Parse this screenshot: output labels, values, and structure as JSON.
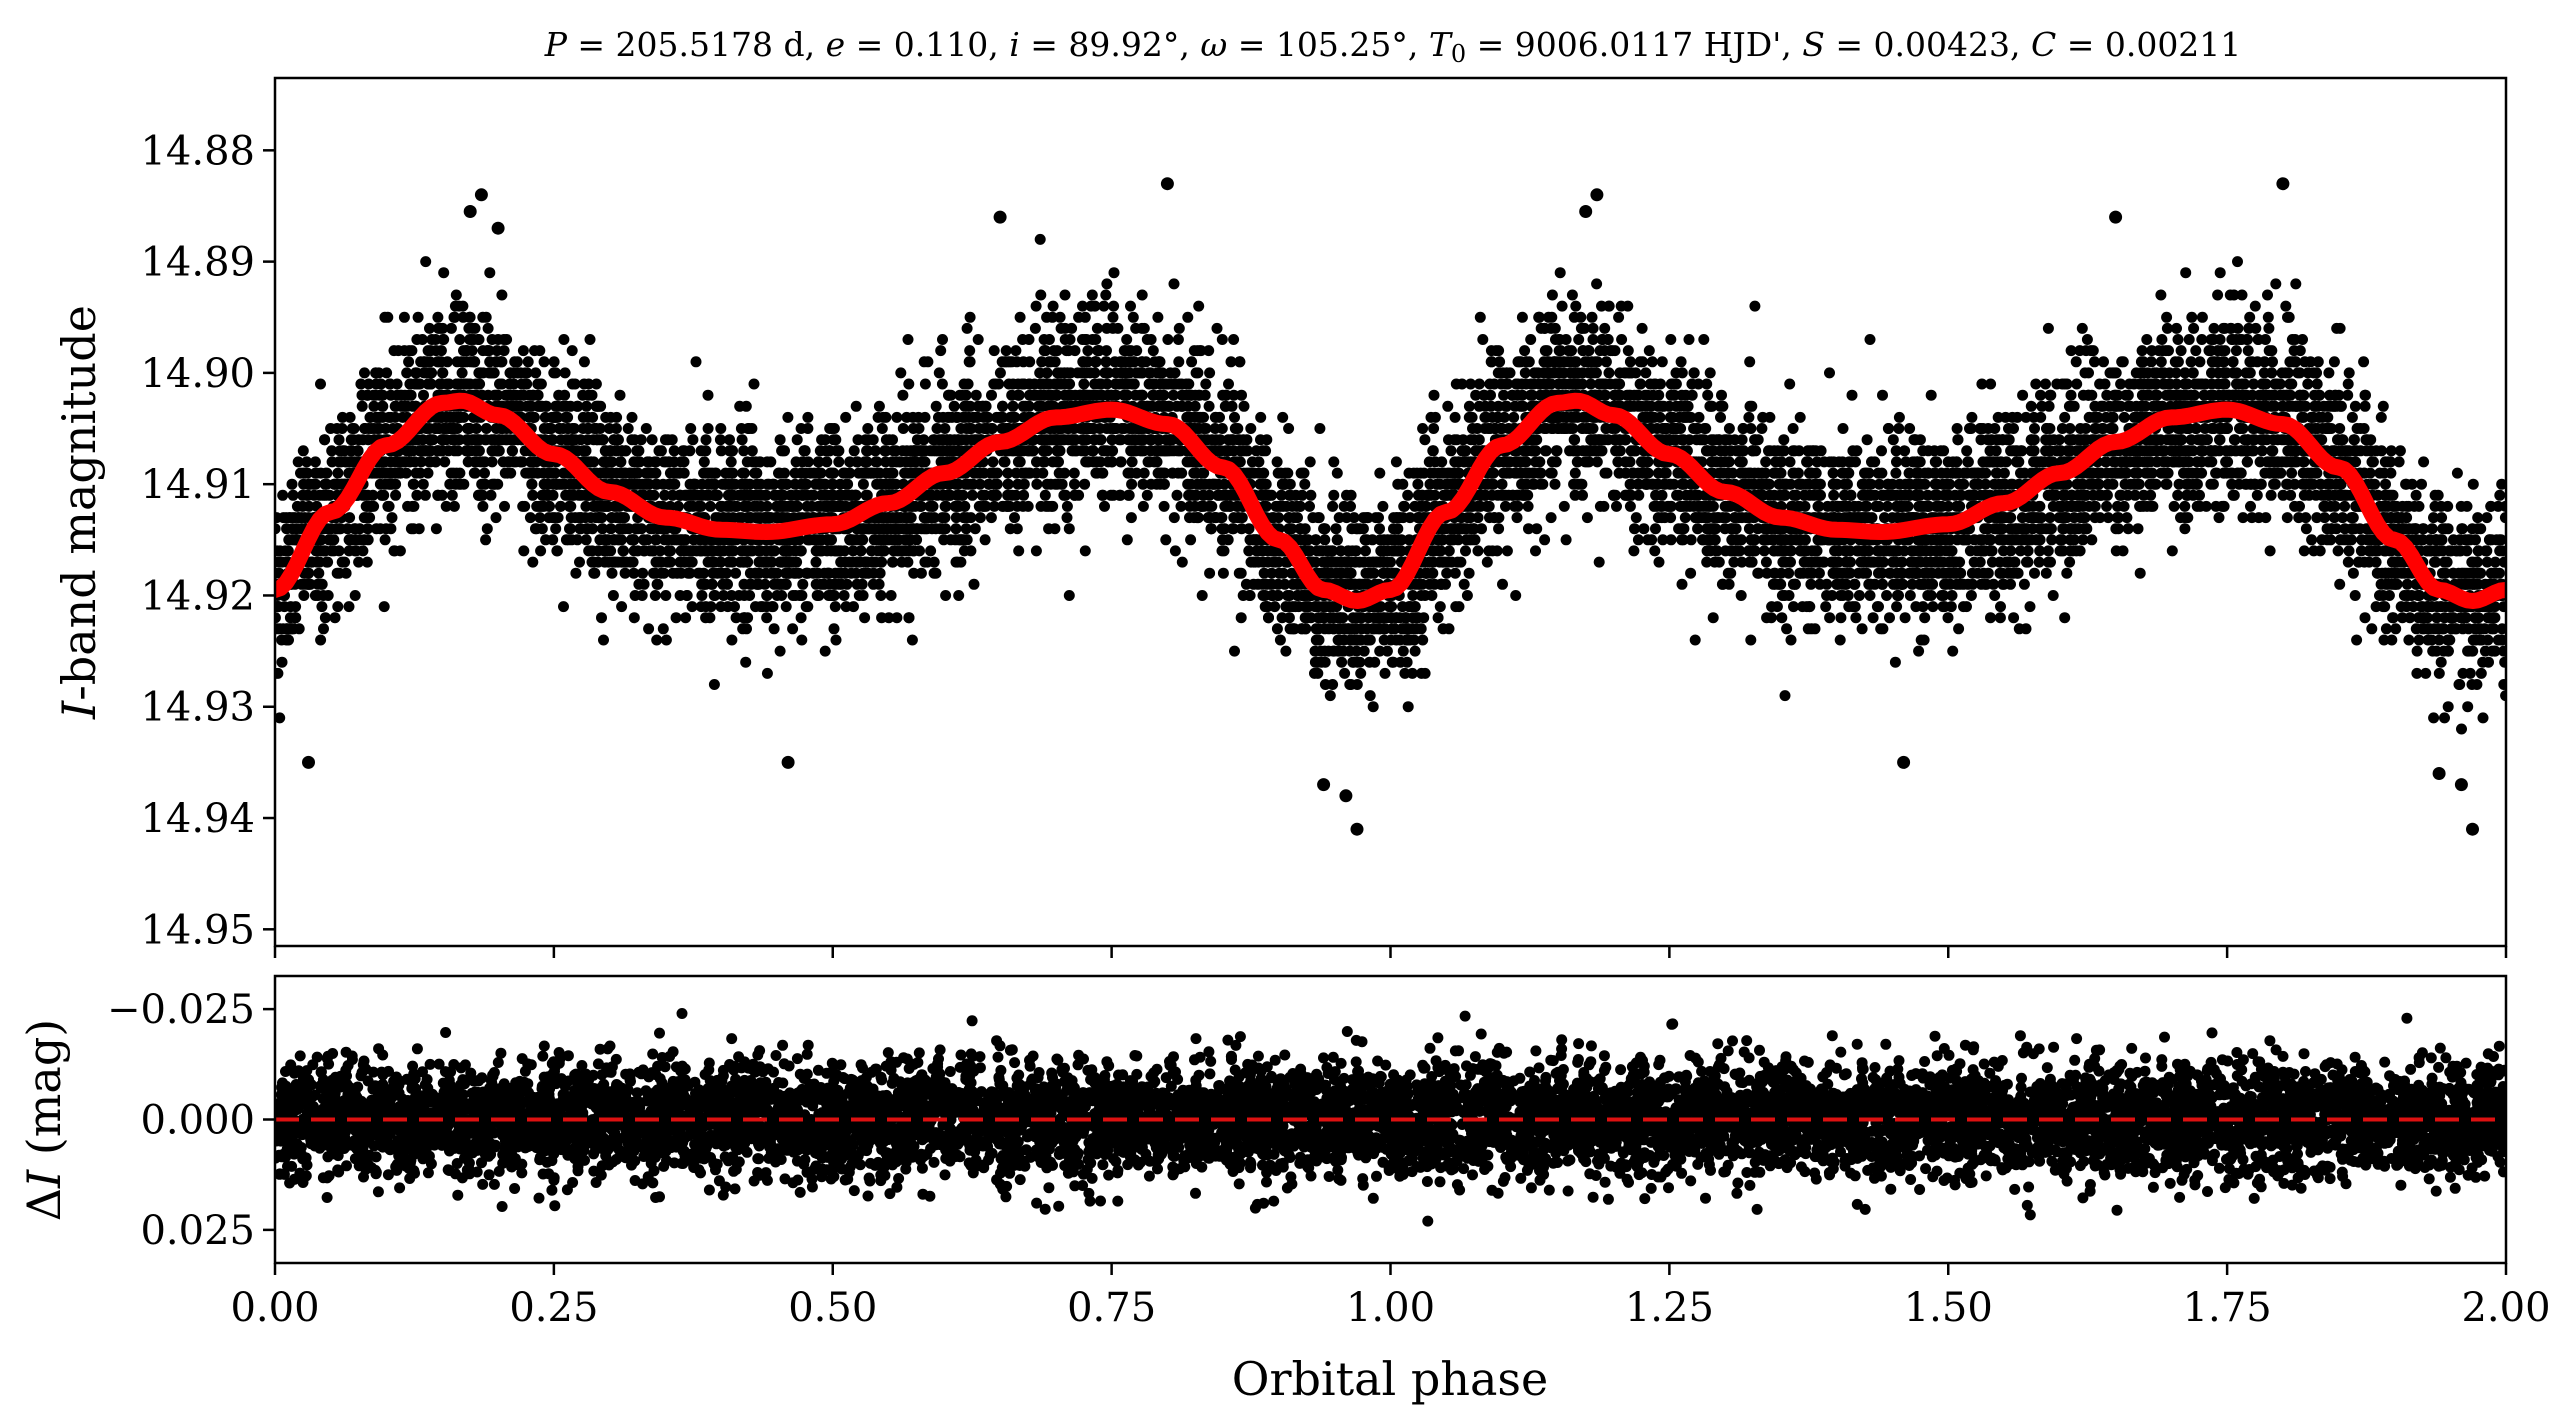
{
  "chart_data": [
    {
      "type": "scatter",
      "panel": "light-curve",
      "title_parts": {
        "P_symbol": "P",
        "P_value": " = 205.5178 d, ",
        "e_symbol": "e",
        "e_value": " = 0.110, ",
        "i_symbol": "i",
        "i_value": " = 89.92°, ",
        "w_symbol": "ω",
        "w_value": " = 105.25°, ",
        "T_symbol": "T",
        "T_sub": "0",
        "T_value": " = 9006.0117 HJD', ",
        "S_symbol": "S",
        "S_value": " = 0.00423, ",
        "C_symbol": "C",
        "C_value": " = 0.00211"
      },
      "ylabel_italic": "I",
      "ylabel_rest": "-band magnitude",
      "xlim": [
        0,
        2
      ],
      "ylim": [
        14.9515,
        14.8735
      ],
      "y_inverted": true,
      "yticks": [
        14.88,
        14.89,
        14.9,
        14.91,
        14.92,
        14.93,
        14.94,
        14.95
      ],
      "ytick_labels": [
        "14.88",
        "14.89",
        "14.90",
        "14.91",
        "14.92",
        "14.93",
        "14.94",
        "14.95"
      ],
      "model": {
        "color": "#ff0000",
        "x": [
          0.0,
          0.05,
          0.1,
          0.15,
          0.167,
          0.2,
          0.25,
          0.3,
          0.35,
          0.4,
          0.44,
          0.5,
          0.55,
          0.6,
          0.65,
          0.7,
          0.75,
          0.8,
          0.85,
          0.9,
          0.94,
          0.97,
          1.0,
          1.05,
          1.1,
          1.15,
          1.167,
          1.2,
          1.25,
          1.3,
          1.35,
          1.4,
          1.44,
          1.5,
          1.55,
          1.6,
          1.65,
          1.7,
          1.75,
          1.8,
          1.85,
          1.9,
          1.94,
          1.97,
          2.0
        ],
        "y": [
          14.9195,
          14.9125,
          14.9065,
          14.9027,
          14.9025,
          14.9038,
          14.9073,
          14.9107,
          14.913,
          14.9141,
          14.9143,
          14.9136,
          14.9117,
          14.909,
          14.9062,
          14.904,
          14.9033,
          14.9046,
          14.9085,
          14.915,
          14.9195,
          14.9205,
          14.9195,
          14.9125,
          14.9065,
          14.9027,
          14.9025,
          14.9038,
          14.9073,
          14.9107,
          14.913,
          14.9141,
          14.9143,
          14.9136,
          14.9117,
          14.909,
          14.9062,
          14.904,
          14.9033,
          14.9046,
          14.9085,
          14.915,
          14.9195,
          14.9205,
          14.9195
        ]
      },
      "observations": {
        "color": "#000000",
        "approx_count": 9000,
        "scatter_sd_mag": 0.0042,
        "outliers": [
          {
            "x": 0.175,
            "y": 14.8855
          },
          {
            "x": 0.185,
            "y": 14.884
          },
          {
            "x": 0.2,
            "y": 14.887
          },
          {
            "x": 0.03,
            "y": 14.935
          },
          {
            "x": 0.46,
            "y": 14.935
          },
          {
            "x": 0.65,
            "y": 14.886
          },
          {
            "x": 0.8,
            "y": 14.883
          },
          {
            "x": 0.97,
            "y": 14.941
          },
          {
            "x": 0.96,
            "y": 14.938
          },
          {
            "x": 0.94,
            "y": 14.937
          },
          {
            "x": 1.175,
            "y": 14.8855
          },
          {
            "x": 1.185,
            "y": 14.884
          },
          {
            "x": 1.46,
            "y": 14.935
          },
          {
            "x": 1.65,
            "y": 14.886
          },
          {
            "x": 1.8,
            "y": 14.883
          },
          {
            "x": 1.97,
            "y": 14.941
          },
          {
            "x": 1.96,
            "y": 14.937
          },
          {
            "x": 1.94,
            "y": 14.936
          }
        ]
      }
    },
    {
      "type": "scatter",
      "panel": "residuals",
      "ylabel_delta": "Δ",
      "ylabel_italic": "I",
      "ylabel_rest": " (mag)",
      "xlabel": "Orbital phase",
      "xlim": [
        0,
        2
      ],
      "ylim": [
        0.0325,
        -0.0325
      ],
      "y_inverted": true,
      "yticks": [
        -0.025,
        0.0,
        0.025
      ],
      "ytick_labels": [
        "−0.025",
        "0.000",
        "0.025"
      ],
      "xticks": [
        0.0,
        0.25,
        0.5,
        0.75,
        1.0,
        1.25,
        1.5,
        1.75,
        2.0
      ],
      "xtick_labels": [
        "0.00",
        "0.25",
        "0.50",
        "0.75",
        "1.00",
        "1.25",
        "1.50",
        "1.75",
        "2.00"
      ],
      "zero_line": {
        "y": 0.0,
        "color": "#dd1111",
        "style": "dashed"
      },
      "observations": {
        "color": "#000000",
        "approx_count": 9000,
        "scatter_sd_mag": 0.0063,
        "range": [
          -0.024,
          0.023
        ]
      }
    }
  ]
}
